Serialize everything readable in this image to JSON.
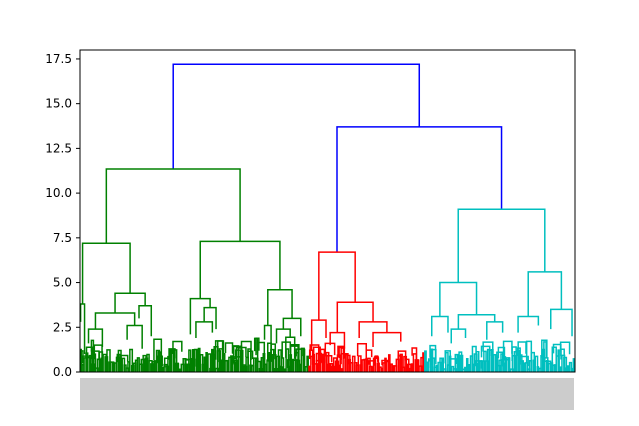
{
  "chart_data": {
    "type": "dendrogram",
    "title": "",
    "xlabel": "",
    "ylabel": "",
    "ylim": [
      0,
      18
    ],
    "yticks": [
      "0.0",
      "2.5",
      "5.0",
      "7.5",
      "10.0",
      "12.5",
      "15.0",
      "17.5"
    ],
    "ytick_values": [
      0,
      2.5,
      5,
      7.5,
      10,
      12.5,
      15,
      17.5
    ],
    "grid": false,
    "leaf_labels_legible": false,
    "colors": {
      "cluster_1": "#008000",
      "cluster_2": "#ff0000",
      "cluster_3": "#00bfbf",
      "above_threshold": "#0000ff",
      "axes": "#000000"
    },
    "links": [
      {
        "color": "above_threshold",
        "left_x": 0.1883,
        "right_x": 0.6854,
        "height": 17.2,
        "left_h": 11.35,
        "right_h": 13.7
      },
      {
        "color": "above_threshold",
        "left_x": 0.5192,
        "right_x": 0.8516,
        "height": 13.7,
        "left_h": 6.7,
        "right_h": 9.1
      },
      {
        "color": "cluster_1",
        "left_x": 0.0532,
        "right_x": 0.3234,
        "height": 11.35,
        "left_h": 7.2,
        "right_h": 7.3
      },
      {
        "color": "cluster_1",
        "left_x": 0.0052,
        "right_x": 0.1012,
        "height": 7.2,
        "left_h": 3.8,
        "right_h": 4.4
      },
      {
        "color": "cluster_1",
        "left_x": 0.2429,
        "right_x": 0.4039,
        "height": 7.3,
        "left_h": 4.1,
        "right_h": 4.6
      },
      {
        "color": "cluster_1",
        "left_x": 0.0012,
        "right_x": 0.0092,
        "height": 3.8,
        "left_h": 2.8,
        "right_h": 1.0
      },
      {
        "color": "cluster_1",
        "left_x": 0.0708,
        "right_x": 0.1316,
        "height": 4.4,
        "left_h": 3.3,
        "right_h": 3.7
      },
      {
        "color": "cluster_1",
        "left_x": 0.223,
        "right_x": 0.2628,
        "height": 4.1,
        "left_h": 2.1,
        "right_h": 3.6
      },
      {
        "color": "cluster_1",
        "left_x": 0.3794,
        "right_x": 0.4284,
        "height": 4.6,
        "left_h": 2.6,
        "right_h": 3.0
      },
      {
        "color": "cluster_1",
        "left_x": 0.0312,
        "right_x": 0.1104,
        "height": 3.3,
        "left_h": 2.4,
        "right_h": 2.6
      },
      {
        "color": "cluster_1",
        "left_x": 0.1192,
        "right_x": 0.144,
        "height": 3.7,
        "left_h": 3.0,
        "right_h": 2.0
      },
      {
        "color": "cluster_1",
        "left_x": 0.2508,
        "right_x": 0.2748,
        "height": 3.6,
        "left_h": 2.8,
        "right_h": 2.4
      },
      {
        "color": "cluster_1",
        "left_x": 0.3728,
        "right_x": 0.386,
        "height": 2.6,
        "left_h": 1.8,
        "right_h": 1.2
      },
      {
        "color": "cluster_1",
        "left_x": 0.4108,
        "right_x": 0.446,
        "height": 3.0,
        "left_h": 2.4,
        "right_h": 2.0
      },
      {
        "color": "cluster_1",
        "left_x": 0.0172,
        "right_x": 0.0452,
        "height": 2.4,
        "left_h": 1.6,
        "right_h": 1.4
      },
      {
        "color": "cluster_1",
        "left_x": 0.0952,
        "right_x": 0.1256,
        "height": 2.6,
        "left_h": 1.8,
        "right_h": 1.3
      },
      {
        "color": "cluster_1",
        "left_x": 0.2342,
        "right_x": 0.2674,
        "height": 2.8,
        "left_h": 1.9,
        "right_h": 2.2
      },
      {
        "color": "cluster_1",
        "left_x": 0.397,
        "right_x": 0.4246,
        "height": 2.4,
        "left_h": 1.6,
        "right_h": 1.9
      },
      {
        "color": "cluster_2",
        "left_x": 0.4825,
        "right_x": 0.5559,
        "height": 6.7,
        "left_h": 2.9,
        "right_h": 3.9
      },
      {
        "color": "cluster_2",
        "left_x": 0.468,
        "right_x": 0.497,
        "height": 2.9,
        "left_h": 1.2,
        "right_h": 1.9
      },
      {
        "color": "cluster_2",
        "left_x": 0.5198,
        "right_x": 0.592,
        "height": 3.9,
        "left_h": 2.2,
        "right_h": 2.8
      },
      {
        "color": "cluster_2",
        "left_x": 0.5054,
        "right_x": 0.5342,
        "height": 2.2,
        "left_h": 1.5,
        "right_h": 1.3
      },
      {
        "color": "cluster_2",
        "left_x": 0.564,
        "right_x": 0.62,
        "height": 2.8,
        "left_h": 1.9,
        "right_h": 2.2
      },
      {
        "color": "cluster_2",
        "left_x": 0.592,
        "right_x": 0.648,
        "height": 2.2,
        "left_h": 1.4,
        "right_h": 1.7
      },
      {
        "color": "cluster_3",
        "left_x": 0.7641,
        "right_x": 0.939,
        "height": 9.1,
        "left_h": 5.0,
        "right_h": 5.6
      },
      {
        "color": "cluster_3",
        "left_x": 0.727,
        "right_x": 0.8011,
        "height": 5.0,
        "left_h": 3.1,
        "right_h": 3.2
      },
      {
        "color": "cluster_3",
        "left_x": 0.9055,
        "right_x": 0.9725,
        "height": 5.6,
        "left_h": 3.1,
        "right_h": 3.5
      },
      {
        "color": "cluster_3",
        "left_x": 0.7106,
        "right_x": 0.7434,
        "height": 3.1,
        "left_h": 2.0,
        "right_h": 2.2
      },
      {
        "color": "cluster_3",
        "left_x": 0.7644,
        "right_x": 0.8378,
        "height": 3.2,
        "left_h": 2.4,
        "right_h": 2.8
      },
      {
        "color": "cluster_3",
        "left_x": 0.885,
        "right_x": 0.926,
        "height": 3.1,
        "left_h": 2.2,
        "right_h": 2.6
      },
      {
        "color": "cluster_3",
        "left_x": 0.951,
        "right_x": 0.994,
        "height": 3.5,
        "left_h": 2.4,
        "right_h": 2.0
      },
      {
        "color": "cluster_3",
        "left_x": 0.75,
        "right_x": 0.7788,
        "height": 2.4,
        "left_h": 1.6,
        "right_h": 1.9
      },
      {
        "color": "cluster_3",
        "left_x": 0.8218,
        "right_x": 0.8538,
        "height": 2.8,
        "left_h": 1.8,
        "right_h": 2.2
      }
    ],
    "low_level_clusters": [
      {
        "color": "cluster_1",
        "from": 0.0,
        "to": 0.462,
        "max_height": 2.0
      },
      {
        "color": "cluster_2",
        "from": 0.462,
        "to": 0.696,
        "max_height": 1.6
      },
      {
        "color": "cluster_3",
        "from": 0.696,
        "to": 1.0,
        "max_height": 1.9
      }
    ]
  }
}
